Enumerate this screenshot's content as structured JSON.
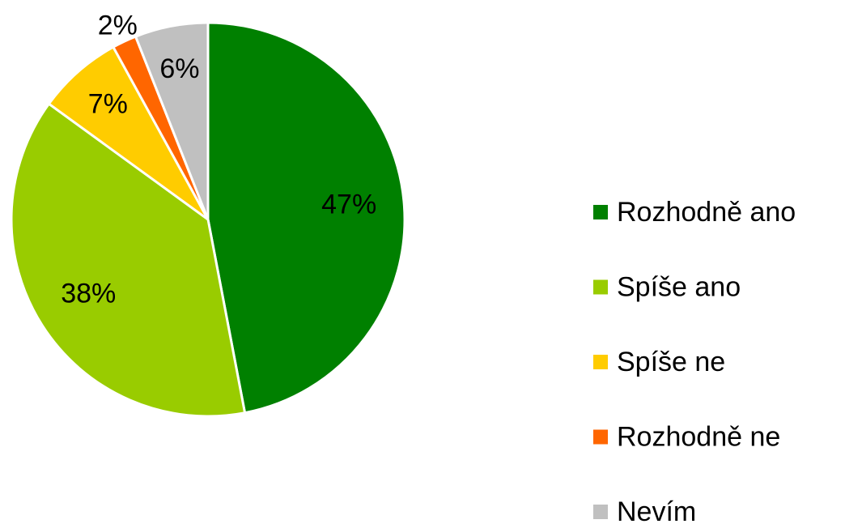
{
  "chart_data": {
    "type": "pie",
    "categories": [
      "Rozhodně ano",
      "Spíše ano",
      "Spíše ne",
      "Rozhodně ne",
      "Nevím"
    ],
    "values": [
      47,
      38,
      7,
      2,
      6
    ],
    "value_labels": [
      "47%",
      "38%",
      "7%",
      "2%",
      "6%"
    ],
    "colors": [
      "#008000",
      "#99cc00",
      "#ffcc00",
      "#ff6600",
      "#c0c0c0"
    ],
    "legend": "right"
  }
}
